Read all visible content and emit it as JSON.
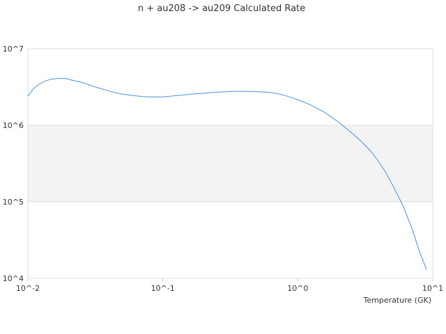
{
  "chart_data": {
    "type": "line",
    "title": "n + au208 -> au209 Calculated Rate",
    "xlabel": "Temperature (GK)",
    "ylabel": "",
    "xscale": "log",
    "yscale": "log",
    "xlim": [
      0.01,
      10
    ],
    "ylim": [
      10000,
      10000000
    ],
    "x_tick_labels": [
      "10^-2",
      "10^-1",
      "10^0",
      "10^1"
    ],
    "y_tick_labels": [
      "10^7",
      "10^6",
      "10^5",
      "10^4"
    ],
    "grid": true,
    "alternating_bands": true,
    "legend": "none",
    "series": [
      {
        "color": "#4a90d9",
        "x": [
          0.01,
          0.011,
          0.012,
          0.0135,
          0.015,
          0.017,
          0.019,
          0.021,
          0.024,
          0.027,
          0.03,
          0.035,
          0.04,
          0.045,
          0.05,
          0.06,
          0.07,
          0.08,
          0.09,
          0.1,
          0.12,
          0.14,
          0.16,
          0.18,
          0.2,
          0.25,
          0.3,
          0.35,
          0.4,
          0.5,
          0.6,
          0.7,
          0.8,
          0.9,
          1.0,
          1.2,
          1.4,
          1.6,
          1.8,
          2.0,
          2.5,
          3.0,
          3.5,
          4.0,
          4.5,
          5.0,
          6.0,
          7.0,
          8.0,
          9.0
        ],
        "y": [
          2400000,
          3000000,
          3400000,
          3800000,
          4000000,
          4100000,
          4100000,
          3900000,
          3700000,
          3500000,
          3250000,
          3000000,
          2800000,
          2650000,
          2550000,
          2450000,
          2380000,
          2350000,
          2350000,
          2350000,
          2420000,
          2480000,
          2550000,
          2580000,
          2620000,
          2700000,
          2750000,
          2780000,
          2780000,
          2750000,
          2700000,
          2600000,
          2450000,
          2300000,
          2150000,
          1900000,
          1650000,
          1450000,
          1250000,
          1100000,
          800000,
          600000,
          450000,
          330000,
          240000,
          170000,
          90000,
          45000,
          22000,
          13000
        ]
      }
    ]
  }
}
